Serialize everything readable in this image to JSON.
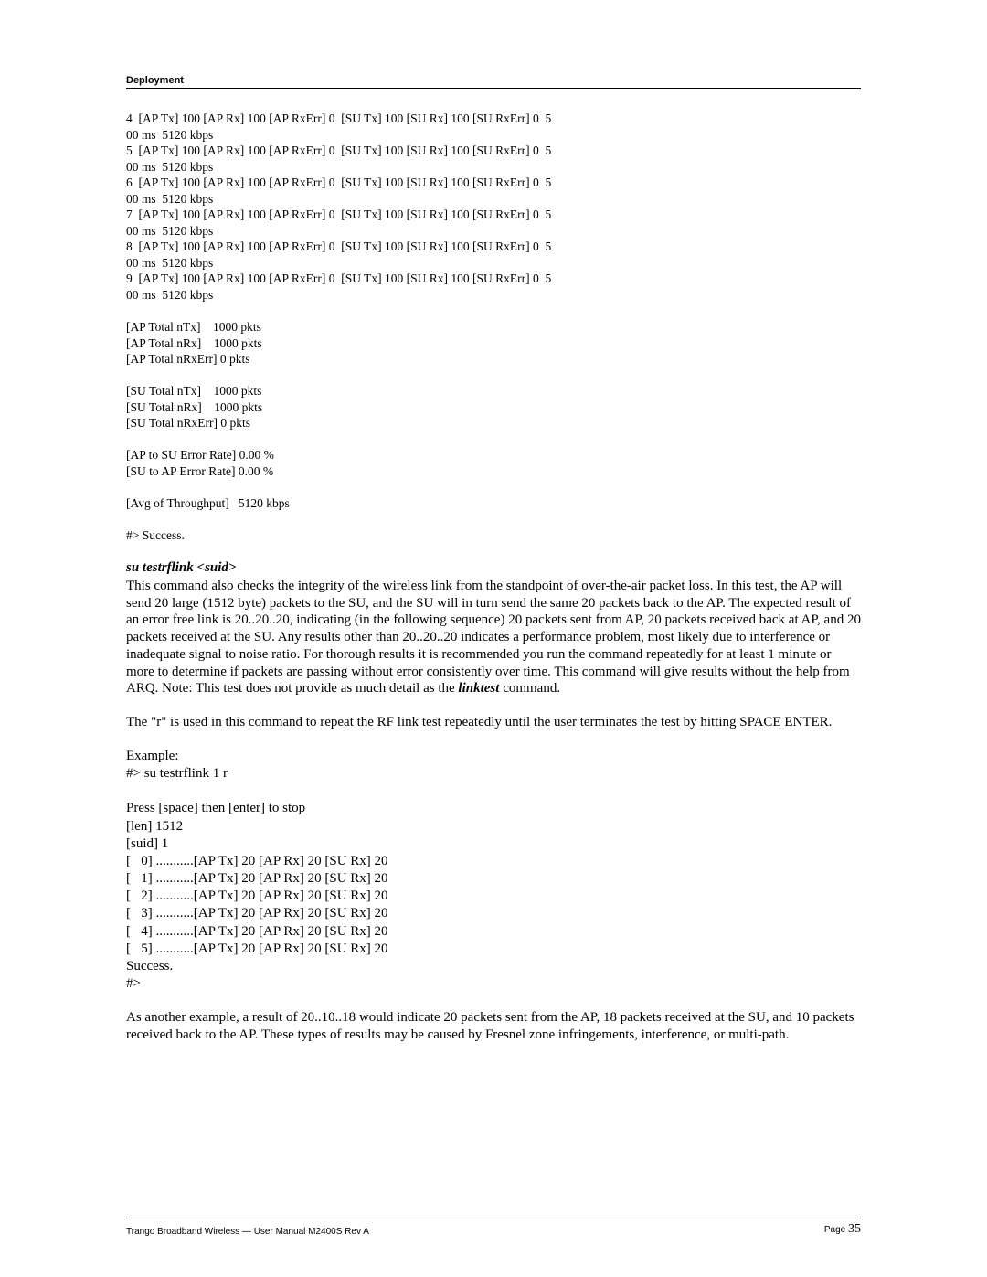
{
  "header": {
    "title": "Deployment"
  },
  "terminal": {
    "lines": [
      "4  [AP Tx] 100 [AP Rx] 100 [AP RxErr] 0  [SU Tx] 100 [SU Rx] 100 [SU RxErr] 0  5",
      "00 ms  5120 kbps",
      "5  [AP Tx] 100 [AP Rx] 100 [AP RxErr] 0  [SU Tx] 100 [SU Rx] 100 [SU RxErr] 0  5",
      "00 ms  5120 kbps",
      "6  [AP Tx] 100 [AP Rx] 100 [AP RxErr] 0  [SU Tx] 100 [SU Rx] 100 [SU RxErr] 0  5",
      "00 ms  5120 kbps",
      "7  [AP Tx] 100 [AP Rx] 100 [AP RxErr] 0  [SU Tx] 100 [SU Rx] 100 [SU RxErr] 0  5",
      "00 ms  5120 kbps",
      "8  [AP Tx] 100 [AP Rx] 100 [AP RxErr] 0  [SU Tx] 100 [SU Rx] 100 [SU RxErr] 0  5",
      "00 ms  5120 kbps",
      "9  [AP Tx] 100 [AP Rx] 100 [AP RxErr] 0  [SU Tx] 100 [SU Rx] 100 [SU RxErr] 0  5",
      "00 ms  5120 kbps",
      "",
      "[AP Total nTx]    1000 pkts",
      "[AP Total nRx]    1000 pkts",
      "[AP Total nRxErr] 0 pkts",
      "",
      "[SU Total nTx]    1000 pkts",
      "[SU Total nRx]    1000 pkts",
      "[SU Total nRxErr] 0 pkts",
      "",
      "[AP to SU Error Rate] 0.00 %",
      "[SU to AP Error Rate] 0.00 %",
      "",
      "[Avg of Throughput]   5120 kbps",
      "",
      "#> Success."
    ]
  },
  "section": {
    "heading": "su testrflink <suid>",
    "para1_a": "This command also checks the integrity of the wireless link from the standpoint of over-the-air packet loss.  In this test, the AP will send 20 large (1512 byte) packets to the SU, and the SU will in turn send the same 20 packets back to the AP.  The expected result of an error free link is 20..20..20, indicating (in the following sequence) 20 packets sent from AP, 20 packets received back at AP, and 20 packets received at the SU.  Any results other than 20..20..20 indicates a performance problem, most likely due to interference or inadequate signal to noise ratio.  For thorough results it is recommended you run the command repeatedly for at least 1 minute or more to determine if packets are passing without error consistently over time.  This command will give results without the help from ARQ.  Note: This test does not provide as much detail as the ",
    "para1_em": "linktest",
    "para1_b": " command.",
    "para2": "The \"r\" is used in this command to repeat the RF link test repeatedly until the user terminates the test by hitting SPACE ENTER.",
    "example": "Example:\n#> su testrflink 1 r\n\nPress [space] then [enter] to stop\n[len] 1512\n[suid] 1\n[   0] ...........[AP Tx] 20 [AP Rx] 20 [SU Rx] 20\n[   1] ...........[AP Tx] 20 [AP Rx] 20 [SU Rx] 20\n[   2] ...........[AP Tx] 20 [AP Rx] 20 [SU Rx] 20\n[   3] ...........[AP Tx] 20 [AP Rx] 20 [SU Rx] 20\n[   4] ...........[AP Tx] 20 [AP Rx] 20 [SU Rx] 20\n[   5] ...........[AP Tx] 20 [AP Rx] 20 [SU Rx] 20\nSuccess.\n#>",
    "para3": "As another example, a result of 20..10..18 would indicate 20 packets sent from the AP, 18 packets received at the SU, and 10 packets received back to the AP.  These types of results may be caused by Fresnel zone infringements, interference, or multi-path."
  },
  "footer": {
    "left": "Trango Broadband Wireless — User Manual M2400S Rev A",
    "page_label": "Page ",
    "page_number": "35"
  }
}
